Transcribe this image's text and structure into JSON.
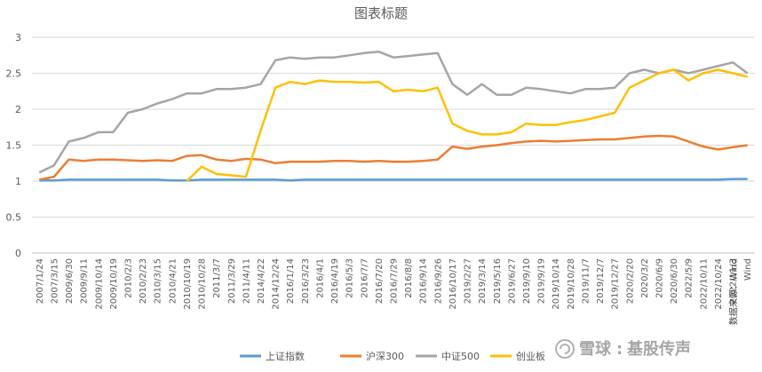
{
  "chart_data": {
    "type": "line",
    "title": "图表标题",
    "xlabel": "",
    "ylabel": "",
    "ylim": [
      0,
      3
    ],
    "yticks": [
      "0",
      "0.5",
      "1",
      "1.5",
      "2",
      "2.5",
      "3"
    ],
    "grid": "horizontal",
    "legend_position": "bottom",
    "source": "数据来源：Wind",
    "categories": [
      "2007/1/24",
      "2007/3/15",
      "2009/6/30",
      "2009/9/11",
      "2009/10/14",
      "2009/10/19",
      "2010/2/3",
      "2010/2/23",
      "2010/3/15",
      "2010/4/21",
      "2010/10/19",
      "2010/10/28",
      "2011/3/7",
      "2011/3/29",
      "2011/4/11",
      "2014/4/22",
      "2014/12/24",
      "2016/1/14",
      "2016/3/23",
      "2016/4/1",
      "2016/4/19",
      "2016/5/3",
      "2016/7/7",
      "2016/7/20",
      "2016/7/29",
      "2016/8/8",
      "2016/9/14",
      "2016/9/26",
      "2016/10/17",
      "2019/2/27",
      "2019/3/14",
      "2019/5/16",
      "2019/6/27",
      "2019/9/10",
      "2019/9/19",
      "2019/10/14",
      "2019/10/28",
      "2019/11/7",
      "2019/12/7",
      "2019/12/27",
      "2020/2/20",
      "2020/3/2",
      "2020/6/9",
      "2020/6/30",
      "2022/5/9",
      "2022/10/11",
      "2022/10/24",
      "2022/11/3",
      "Wind"
    ],
    "series": [
      {
        "name": "上证指数",
        "color": "#5b9bd5",
        "values": [
          1.01,
          1.01,
          1.02,
          1.02,
          1.02,
          1.02,
          1.02,
          1.02,
          1.02,
          1.01,
          1.01,
          1.02,
          1.02,
          1.02,
          1.02,
          1.02,
          1.02,
          1.01,
          1.02,
          1.02,
          1.02,
          1.02,
          1.02,
          1.02,
          1.02,
          1.02,
          1.02,
          1.02,
          1.02,
          1.02,
          1.02,
          1.02,
          1.02,
          1.02,
          1.02,
          1.02,
          1.02,
          1.02,
          1.02,
          1.02,
          1.02,
          1.02,
          1.02,
          1.02,
          1.02,
          1.02,
          1.02,
          1.03,
          1.03
        ]
      },
      {
        "name": "沪深300",
        "color": "#ed7d31",
        "values": [
          1.02,
          1.06,
          1.3,
          1.28,
          1.3,
          1.3,
          1.29,
          1.28,
          1.29,
          1.28,
          1.35,
          1.36,
          1.3,
          1.28,
          1.31,
          1.3,
          1.25,
          1.27,
          1.27,
          1.27,
          1.28,
          1.28,
          1.27,
          1.28,
          1.27,
          1.27,
          1.28,
          1.3,
          1.48,
          1.45,
          1.48,
          1.5,
          1.53,
          1.55,
          1.56,
          1.55,
          1.56,
          1.57,
          1.58,
          1.58,
          1.6,
          1.62,
          1.63,
          1.62,
          1.55,
          1.48,
          1.44,
          1.47,
          1.5
        ]
      },
      {
        "name": "中证500",
        "color": "#a5a5a5",
        "values": [
          1.12,
          1.22,
          1.55,
          1.6,
          1.68,
          1.68,
          1.95,
          2.0,
          2.08,
          2.14,
          2.22,
          2.22,
          2.28,
          2.28,
          2.3,
          2.35,
          2.68,
          2.72,
          2.7,
          2.72,
          2.72,
          2.75,
          2.78,
          2.8,
          2.72,
          2.74,
          2.76,
          2.78,
          2.35,
          2.2,
          2.35,
          2.2,
          2.2,
          2.3,
          2.28,
          2.25,
          2.22,
          2.28,
          2.28,
          2.3,
          2.5,
          2.55,
          2.5,
          2.55,
          2.5,
          2.55,
          2.6,
          2.65,
          2.5
        ]
      },
      {
        "name": "创业板",
        "color": "#ffc000",
        "values": [
          null,
          null,
          null,
          null,
          null,
          null,
          null,
          null,
          null,
          null,
          1.0,
          1.2,
          1.1,
          1.08,
          1.06,
          1.7,
          2.3,
          2.38,
          2.35,
          2.4,
          2.38,
          2.38,
          2.37,
          2.38,
          2.25,
          2.27,
          2.25,
          2.3,
          1.8,
          1.7,
          1.65,
          1.65,
          1.68,
          1.8,
          1.78,
          1.78,
          1.82,
          1.85,
          1.9,
          1.95,
          2.3,
          2.4,
          2.5,
          2.55,
          2.4,
          2.5,
          2.55,
          2.5,
          2.45
        ]
      }
    ]
  },
  "watermark": {
    "brand": "雪球",
    "account": "基股传声"
  }
}
